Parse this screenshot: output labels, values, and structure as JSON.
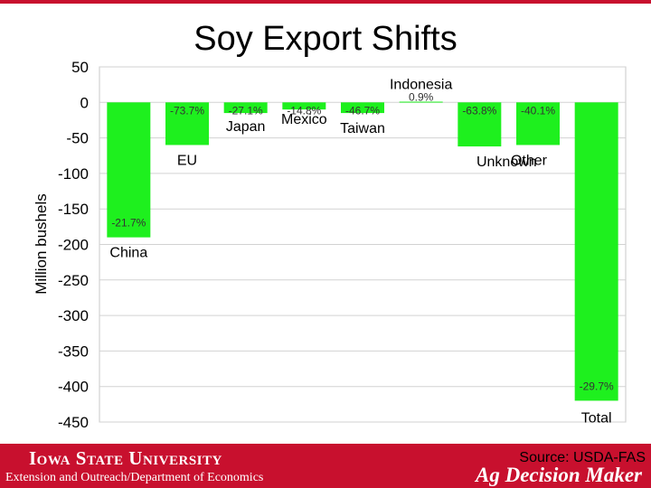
{
  "slide": {
    "title": "Soy Export Shifts",
    "source": "Source: USDA-FAS",
    "university": "Iowa State University",
    "department": "Extension and Outreach/Department of Economics",
    "brand": "Ag Decision Maker"
  },
  "colors": {
    "bar": "#1ef01e",
    "accent": "#c8102e"
  },
  "chart_data": {
    "type": "bar",
    "title": "Soy Export Shifts",
    "ylabel": "Million bushels",
    "xlabel": "",
    "ylim": [
      -450,
      50
    ],
    "yticks": [
      50,
      0,
      -50,
      -100,
      -150,
      -200,
      -250,
      -300,
      -350,
      -400,
      -450
    ],
    "grid": true,
    "categories": [
      "China",
      "EU",
      "Japan",
      "Mexico",
      "Taiwan",
      "Indonesia",
      "Unknown",
      "Other",
      "Total"
    ],
    "values": [
      -190,
      -60,
      -15,
      -10,
      -15,
      1,
      -62,
      -60,
      -420
    ],
    "data_labels": [
      "-21.7%",
      "-73.7%",
      "-27.1%",
      "-14.8%",
      "-46.7%",
      "0.9%",
      "-63.8%",
      "-40.1%",
      "-29.7%"
    ]
  }
}
